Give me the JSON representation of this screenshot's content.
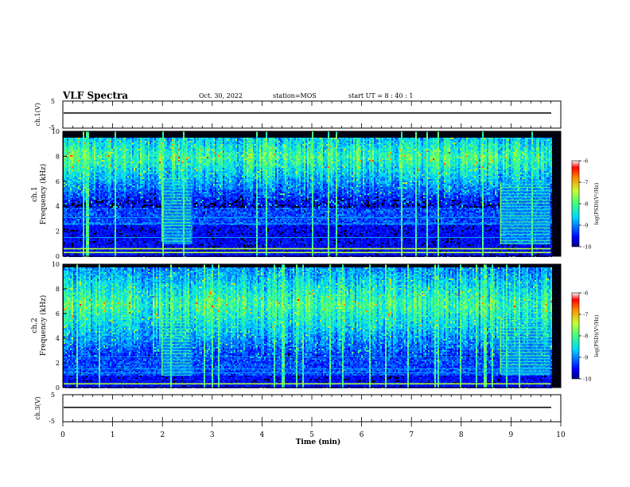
{
  "header": {
    "title": "VLF Spectra",
    "date": "Oct. 30, 2022",
    "station": "station=MOS",
    "start_ut": "start  UT =   8 : 40 : 1"
  },
  "chart_data": [
    {
      "id": "ch1v",
      "type": "line",
      "ylabel": "ch.1(V)",
      "yticks": [
        "5",
        "-5"
      ],
      "ylim": [
        -5,
        5
      ],
      "x": [
        0,
        9.8
      ],
      "values": [
        0,
        0
      ],
      "grid": false
    },
    {
      "id": "ch1",
      "type": "heatmap",
      "ylabel": "Frequency (kHz)",
      "channel": "ch.1",
      "yticks": [
        "0",
        "2",
        "4",
        "6",
        "8",
        "10"
      ],
      "ylim": [
        0,
        10
      ],
      "xlim": [
        0,
        10
      ],
      "data_xlim": [
        0,
        9.8
      ],
      "band_khz": [
        4,
        9.5
      ],
      "band_peak_khz": 8,
      "strong_lines_khz": [
        0.3,
        0.6
      ],
      "weak_lines_khz": [
        1.5,
        2.6,
        3.1
      ],
      "bursts": [
        {
          "start_min": 1.98,
          "end_min": 2.58,
          "low_khz": 1.2,
          "high_khz": 6.2
        },
        {
          "start_min": 8.78,
          "end_min": 9.78,
          "low_khz": 1.0,
          "high_khz": 5.9
        }
      ],
      "colorbar": {
        "label": "log(PSD)(V²/Hz)",
        "ticks": [
          "-6",
          "-7",
          "-8",
          "-9",
          "-10"
        ],
        "range": [
          -10,
          -6
        ]
      }
    },
    {
      "id": "ch2",
      "type": "heatmap",
      "ylabel": "Frequency (kHz)",
      "channel": "ch.2",
      "yticks": [
        "0",
        "2",
        "4",
        "6",
        "8",
        "10"
      ],
      "ylim": [
        0,
        10
      ],
      "xlim": [
        0,
        10
      ],
      "data_xlim": [
        0,
        9.8
      ],
      "band_khz": [
        2.5,
        9.8
      ],
      "band_peak_khz": 6.8,
      "strong_lines_khz": [
        0.3
      ],
      "weak_lines_khz": [
        1.2,
        1.5,
        2.5
      ],
      "bursts": [
        {
          "start_min": 1.98,
          "end_min": 2.58,
          "low_khz": 1.0,
          "high_khz": 5.9
        },
        {
          "start_min": 8.78,
          "end_min": 9.78,
          "low_khz": 1.1,
          "high_khz": 5.7
        }
      ],
      "colorbar": {
        "label": "log(PSD)(V²/Hz)",
        "ticks": [
          "-6",
          "-7",
          "-8",
          "-9",
          "-10"
        ],
        "range": [
          -10,
          -6
        ]
      }
    },
    {
      "id": "ch3v",
      "type": "line",
      "ylabel": "ch.3(V)",
      "yticks": [
        "5",
        "-5"
      ],
      "ylim": [
        -5,
        5
      ],
      "x": [
        0,
        9.8
      ],
      "values": [
        0,
        0
      ],
      "grid": false
    }
  ],
  "xaxis": {
    "label": "Time (min)",
    "ticks": [
      "0",
      "1",
      "2",
      "3",
      "4",
      "5",
      "6",
      "7",
      "8",
      "9",
      "10"
    ],
    "range": [
      0,
      10
    ]
  }
}
